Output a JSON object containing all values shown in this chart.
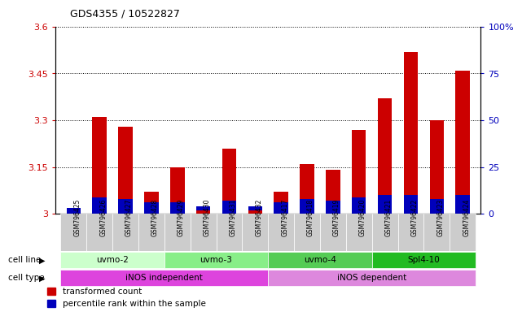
{
  "title": "GDS4355 / 10522827",
  "samples": [
    "GSM796425",
    "GSM796426",
    "GSM796427",
    "GSM796428",
    "GSM796429",
    "GSM796430",
    "GSM796431",
    "GSM796432",
    "GSM796417",
    "GSM796418",
    "GSM796419",
    "GSM796420",
    "GSM796421",
    "GSM796422",
    "GSM796423",
    "GSM796424"
  ],
  "red_values": [
    3.02,
    3.31,
    3.28,
    3.07,
    3.15,
    3.01,
    3.21,
    3.01,
    3.07,
    3.16,
    3.14,
    3.27,
    3.37,
    3.52,
    3.3,
    3.46
  ],
  "blue_percentiles": [
    3,
    9,
    8,
    6,
    6,
    4,
    7,
    4,
    6,
    8,
    7,
    9,
    10,
    10,
    8,
    10
  ],
  "ymin": 3.0,
  "ymax": 3.6,
  "yticks_left": [
    3.0,
    3.15,
    3.3,
    3.45,
    3.6
  ],
  "ytick_labels_left": [
    "3",
    "3.15",
    "3.3",
    "3.45",
    "3.6"
  ],
  "yticks_right": [
    0,
    25,
    50,
    75,
    100
  ],
  "ytick_labels_right": [
    "0",
    "25",
    "50",
    "75",
    "100%"
  ],
  "cell_lines": [
    {
      "label": "uvmo-2",
      "start": 0,
      "end": 3,
      "color": "#ccffcc"
    },
    {
      "label": "uvmo-3",
      "start": 4,
      "end": 7,
      "color": "#88ee88"
    },
    {
      "label": "uvmo-4",
      "start": 8,
      "end": 11,
      "color": "#55cc55"
    },
    {
      "label": "Spl4-10",
      "start": 12,
      "end": 15,
      "color": "#22bb22"
    }
  ],
  "cell_types": [
    {
      "label": "iNOS independent",
      "start": 0,
      "end": 7,
      "color": "#ee55ee"
    },
    {
      "label": "iNOS dependent",
      "start": 8,
      "end": 15,
      "color": "#ee88ee"
    }
  ],
  "red_color": "#cc0000",
  "blue_color": "#0000bb",
  "label_bg_color": "#cccccc",
  "cell_line_colors": [
    "#ccffcc",
    "#88ee88",
    "#55cc55",
    "#22bb22"
  ],
  "cell_type_colors": [
    "#ee55ee",
    "#ee88ee"
  ]
}
